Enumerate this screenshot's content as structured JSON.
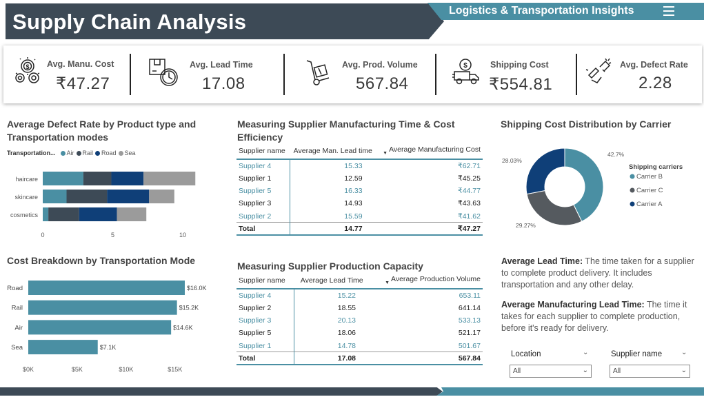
{
  "header": {
    "title": "Supply Chain Analysis",
    "subtitle": "Logistics & Transportation Insights"
  },
  "kpis": [
    {
      "label": "Avg. Manu. Cost",
      "value": "₹47.27",
      "icon": "money-gears-icon"
    },
    {
      "label": "Avg. Lead Time",
      "value": "17.08",
      "icon": "package-clock-icon"
    },
    {
      "label": "Avg. Prod. Volume",
      "value": "567.84",
      "icon": "hand-truck-icon"
    },
    {
      "label": "Shipping Cost",
      "value": "₹554.81",
      "icon": "delivery-truck-icon"
    },
    {
      "label": "Avg. Defect Rate",
      "value": "2.28",
      "icon": "broken-defect-icon"
    }
  ],
  "defect_chart": {
    "title": "Average Defect Rate by Product type and Transportation modes",
    "legend_title": "Transportation...",
    "colors": {
      "Air": "#4a8fa3",
      "Rail": "#3d4a56",
      "Road": "#0f3f78",
      "Sea": "#9b9b9b"
    }
  },
  "cost_chart": {
    "title": "Cost Breakdown by Transportation Mode",
    "color": "#4a8fa3"
  },
  "pie_chart": {
    "title": "Shipping Cost Distribution by Carrier",
    "legend_title": "Shipping carriers",
    "colors": {
      "Carrier B": "#4a8fa3",
      "Carrier C": "#555a5f",
      "Carrier A": "#0f3f78"
    }
  },
  "chart_data": [
    {
      "type": "bar",
      "orientation": "horizontal-stacked",
      "title": "Average Defect Rate by Product type and Transportation modes",
      "categories": [
        "haircare",
        "skincare",
        "cosmetics"
      ],
      "series": [
        {
          "name": "Air",
          "values": [
            2.9,
            1.7,
            0.4
          ]
        },
        {
          "name": "Rail",
          "values": [
            2.0,
            2.9,
            2.2
          ]
        },
        {
          "name": "Road",
          "values": [
            2.3,
            3.0,
            2.7
          ]
        },
        {
          "name": "Sea",
          "values": [
            3.7,
            1.8,
            2.1
          ]
        }
      ],
      "xlim": [
        0,
        10.8
      ],
      "xticks": [
        0,
        5,
        10
      ],
      "legend": "top-left"
    },
    {
      "type": "bar",
      "orientation": "horizontal",
      "title": "Cost Breakdown by Transportation Mode",
      "categories": [
        "Road",
        "Rail",
        "Air",
        "Sea"
      ],
      "values": [
        16.0,
        15.2,
        14.6,
        7.1
      ],
      "data_labels": [
        "$16.0K",
        "$15.2K",
        "$14.6K",
        "$7.1K"
      ],
      "xticks": [
        "$0K",
        "$5K",
        "$10K",
        "$15K"
      ],
      "xlim": [
        0,
        17.5
      ]
    },
    {
      "type": "pie",
      "variant": "donut",
      "title": "Shipping Cost Distribution by Carrier",
      "categories": [
        "Carrier B",
        "Carrier C",
        "Carrier A"
      ],
      "values": [
        42.7,
        29.27,
        28.03
      ],
      "data_labels": [
        "42.7%",
        "29.27%",
        "28.03%"
      ],
      "legend": "right"
    },
    {
      "type": "table",
      "title": "Measuring Supplier Manufacturing Time & Cost Efficiency",
      "columns": [
        "Supplier name",
        "Average Man. Lead time",
        "Average Manufacturing Cost"
      ],
      "rows": [
        [
          "Supplier 4",
          "15.33",
          "₹62.71"
        ],
        [
          "Supplier 1",
          "12.59",
          "₹45.25"
        ],
        [
          "Supplier 5",
          "16.33",
          "₹44.77"
        ],
        [
          "Supplier 3",
          "14.93",
          "₹43.63"
        ],
        [
          "Supplier 2",
          "15.59",
          "₹41.62"
        ]
      ],
      "total": [
        "Total",
        "14.77",
        "₹47.27"
      ]
    },
    {
      "type": "table",
      "title": "Measuring Supplier Production Capacity",
      "columns": [
        "Supplier name",
        "Average Lead Time",
        "Average Production Volume"
      ],
      "rows": [
        [
          "Supplier 4",
          "15.22",
          "653.11"
        ],
        [
          "Supplier 2",
          "18.55",
          "641.14"
        ],
        [
          "Supplier 3",
          "20.13",
          "533.13"
        ],
        [
          "Supplier 5",
          "18.06",
          "521.17"
        ],
        [
          "Supplier 1",
          "14.78",
          "501.67"
        ]
      ],
      "total": [
        "Total",
        "17.08",
        "567.84"
      ]
    }
  ],
  "info": {
    "lead_title": "Average Lead Time:",
    "lead_text": "The time taken for a supplier to complete product delivery. It includes transportation and any other delay.",
    "manu_title": "Average Manufacturing Lead Time:",
    "manu_text": "The time it takes for each supplier to complete production, before it's ready for delivery."
  },
  "slicers": [
    {
      "label": "Location",
      "value": "All"
    },
    {
      "label": "Supplier name",
      "value": "All"
    }
  ]
}
